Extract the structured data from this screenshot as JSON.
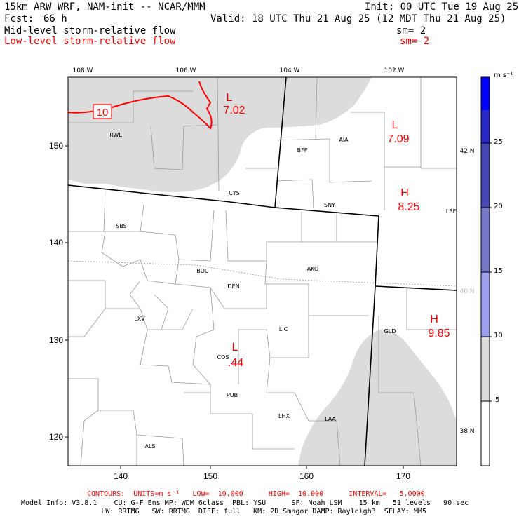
{
  "header": {
    "model": "15km ARW WRF, NAM-init -- NCAR/MMM",
    "init": "Init: 00 UTC Tue 19 Aug 25",
    "fcst_label": "Fcst:",
    "fcst_value": "66 h",
    "valid": "Valid: 18 UTC Thu 21 Aug 25 (12 MDT Thu 21 Aug 25)",
    "field1": "Mid-level storm-relative flow",
    "field1_sm": "sm= 2",
    "field2": "Low-level storm-relative flow",
    "field2_sm": "sm= 2"
  },
  "colors": {
    "shade": "#dcdcdc",
    "contour": "#ff0000",
    "boundary": "#000000",
    "county": "#999999"
  },
  "axes": {
    "lon_labels": [
      "108 W",
      "106 W",
      "104 W",
      "102 W"
    ],
    "lat_labels": [
      "42 N",
      "40 N",
      "38 N"
    ],
    "x_ticks": [
      "140",
      "150",
      "160",
      "170"
    ],
    "y_ticks": [
      "150",
      "140",
      "130",
      "120"
    ]
  },
  "colorbar": {
    "units": "m s⁻¹",
    "levels": [
      "5",
      "10",
      "15",
      "20",
      "25"
    ],
    "colors": [
      "#ffffff",
      "#dcdcdc",
      "#a0a0f0",
      "#7878c8",
      "#4646b4",
      "#2828c8",
      "#0000ff"
    ]
  },
  "highs_lows": [
    {
      "type": "L",
      "value": "7.02"
    },
    {
      "type": "L",
      "value": "7.09"
    },
    {
      "type": "H",
      "value": "8.25"
    },
    {
      "type": "H",
      "value": "9.85"
    },
    {
      "type": "L",
      "value": ".44"
    }
  ],
  "contour_label": "10",
  "stations": [
    "RWL",
    "BFF",
    "AIA",
    "CYS",
    "SNY",
    "LBF",
    "SBS",
    "BOU",
    "AKO",
    "DEN",
    "LXV",
    "LIC",
    "GLD",
    "COS",
    "PUB",
    "LHX",
    "LAA",
    "ALS"
  ],
  "footer": {
    "contours": "CONTOURS:  UNITS=m s⁻¹   LOW=  10.000      HIGH=  10.000      INTERVAL=   5.0000",
    "model_line1": "Model Info: V3.8.1    CU: G-F Ens MP: WDM 6class  PBL: YSU      SF: Noah LSM    15 km   51 levels   90 sec",
    "model_line2": "                   LW: RRTMG   SW: RRTMG  DIFF: full   KM: 2D Smagor DAMP: Rayleigh3  SFLAY: MM5"
  }
}
